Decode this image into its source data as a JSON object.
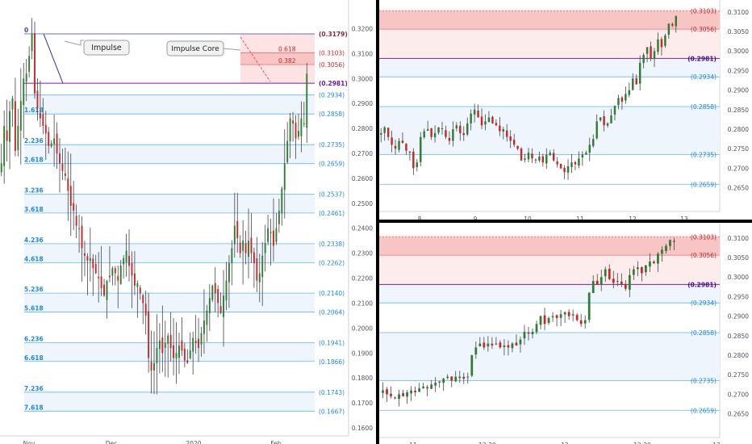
{
  "charts": [
    {
      "id": "daily",
      "type": "candlestick",
      "price_range": [
        0.16,
        0.325
      ],
      "price_ticks": [
        "0.3200",
        "0.3100",
        "0.3000",
        "0.2900",
        "0.2800",
        "0.2700",
        "0.2600",
        "0.2500",
        "0.2400",
        "0.2300",
        "0.2200",
        "0.2100",
        "0.2000",
        "0.1900",
        "0.1800",
        "0.1700",
        "0.1600"
      ],
      "time_labels": [
        "Nov",
        "Dec",
        "2020",
        "Feb"
      ],
      "fib_levels": [
        {
          "ratio": "0",
          "price": "(0.3179)",
          "value": 0.3179,
          "kind": "top"
        },
        {
          "ratio": "",
          "price": "(0.2981)",
          "value": 0.2981,
          "kind": "key"
        },
        {
          "ratio": "",
          "price": "(0.2934)",
          "value": 0.2934,
          "kind": "normal"
        },
        {
          "ratio": "1.618",
          "price": "(0.2858)",
          "value": 0.2858,
          "kind": "normal"
        },
        {
          "ratio": "2.236",
          "price": "(0.2735)",
          "value": 0.2735,
          "kind": "normal"
        },
        {
          "ratio": "2.618",
          "price": "(0.2659)",
          "value": 0.2659,
          "kind": "normal"
        },
        {
          "ratio": "3.236",
          "price": "(0.2537)",
          "value": 0.2537,
          "kind": "normal"
        },
        {
          "ratio": "3.618",
          "price": "(0.2461)",
          "value": 0.2461,
          "kind": "normal"
        },
        {
          "ratio": "4.236",
          "price": "(0.2338)",
          "value": 0.2338,
          "kind": "normal"
        },
        {
          "ratio": "4.618",
          "price": "(0.2262)",
          "value": 0.2262,
          "kind": "normal"
        },
        {
          "ratio": "5.236",
          "price": "(0.2140)",
          "value": 0.214,
          "kind": "normal"
        },
        {
          "ratio": "5.618",
          "price": "(0.2064)",
          "value": 0.2064,
          "kind": "normal"
        },
        {
          "ratio": "6.236",
          "price": "(0.1941)",
          "value": 0.1941,
          "kind": "normal"
        },
        {
          "ratio": "6.618",
          "price": "(0.1866)",
          "value": 0.1866,
          "kind": "normal"
        },
        {
          "ratio": "7.236",
          "price": "(0.1743)",
          "value": 0.1743,
          "kind": "normal"
        },
        {
          "ratio": "7.618",
          "price": "(0.1667)",
          "value": 0.1667,
          "kind": "normal"
        }
      ],
      "zone_levels": [
        {
          "ratio": "0.618",
          "price": "(0.3103)",
          "value": 0.3103
        },
        {
          "ratio": "0.382",
          "price": "(0.3056)",
          "value": 0.3056
        }
      ],
      "callouts": {
        "impulse": "Impulse",
        "impulse_core": "Impulse Core"
      },
      "closes": [
        0.266,
        0.281,
        0.275,
        0.287,
        0.292,
        0.271,
        0.281,
        0.291,
        0.3,
        0.302,
        0.309,
        0.318,
        0.294,
        0.288,
        0.284,
        0.281,
        0.278,
        0.273,
        0.274,
        0.276,
        0.27,
        0.266,
        0.263,
        0.261,
        0.255,
        0.249,
        0.247,
        0.241,
        0.24,
        0.232,
        0.229,
        0.227,
        0.228,
        0.224,
        0.222,
        0.22,
        0.216,
        0.213,
        0.219,
        0.221,
        0.224,
        0.222,
        0.219,
        0.225,
        0.228,
        0.231,
        0.225,
        0.221,
        0.217,
        0.218,
        0.214,
        0.21,
        0.205,
        0.188,
        0.183,
        0.186,
        0.192,
        0.195,
        0.19,
        0.194,
        0.197,
        0.192,
        0.188,
        0.19,
        0.193,
        0.191,
        0.187,
        0.186,
        0.191,
        0.196,
        0.194,
        0.192,
        0.198,
        0.203,
        0.207,
        0.212,
        0.217,
        0.214,
        0.21,
        0.206,
        0.213,
        0.219,
        0.226,
        0.232,
        0.241,
        0.236,
        0.23,
        0.235,
        0.23,
        0.235,
        0.23,
        0.226,
        0.219,
        0.222,
        0.229,
        0.234,
        0.24,
        0.238,
        0.233,
        0.24,
        0.247,
        0.256,
        0.266,
        0.275,
        0.284,
        0.282,
        0.276,
        0.279,
        0.284,
        0.282,
        0.302
      ]
    },
    {
      "id": "hourly",
      "type": "candlestick",
      "price_range": [
        0.261,
        0.311
      ],
      "price_ticks": [
        "0.3100",
        "0.3050",
        "0.3000",
        "0.2950",
        "0.2900",
        "0.2850",
        "0.2800",
        "0.2750",
        "0.2700",
        "0.2650"
      ],
      "time_labels": [
        "8",
        "9",
        "10",
        "11",
        "12",
        "13"
      ],
      "levels": [
        {
          "price": "(0.3103)",
          "value": 0.3103,
          "kind": "zone"
        },
        {
          "price": "(0.3056)",
          "value": 0.3056,
          "kind": "zone"
        },
        {
          "price": "(0.2981)",
          "value": 0.2981,
          "kind": "key"
        },
        {
          "price": "(0.2934)",
          "value": 0.2934,
          "kind": "normal"
        },
        {
          "price": "(0.2858)",
          "value": 0.2858,
          "kind": "normal"
        },
        {
          "price": "(0.2735)",
          "value": 0.2735,
          "kind": "normal"
        },
        {
          "price": "(0.2659)",
          "value": 0.2659,
          "kind": "normal"
        }
      ],
      "closes": [
        0.279,
        0.2805,
        0.278,
        0.276,
        0.275,
        0.277,
        0.2765,
        0.2745,
        0.274,
        0.27,
        0.2715,
        0.278,
        0.2795,
        0.28,
        0.278,
        0.279,
        0.2805,
        0.28,
        0.278,
        0.277,
        0.28,
        0.281,
        0.279,
        0.2785,
        0.2815,
        0.284,
        0.285,
        0.283,
        0.281,
        0.282,
        0.283,
        0.2815,
        0.281,
        0.2795,
        0.28,
        0.278,
        0.277,
        0.276,
        0.275,
        0.272,
        0.2725,
        0.274,
        0.2725,
        0.272,
        0.273,
        0.2715,
        0.2735,
        0.274,
        0.272,
        0.271,
        0.27,
        0.269,
        0.2705,
        0.2715,
        0.271,
        0.2725,
        0.2735,
        0.274,
        0.276,
        0.2775,
        0.282,
        0.283,
        0.281,
        0.2815,
        0.2835,
        0.286,
        0.288,
        0.287,
        0.289,
        0.29,
        0.293,
        0.2915,
        0.297,
        0.299,
        0.301,
        0.298,
        0.3,
        0.303,
        0.301,
        0.304,
        0.307,
        0.3065,
        0.309
      ]
    },
    {
      "id": "minute",
      "type": "candlestick",
      "price_range": [
        0.261,
        0.311
      ],
      "price_ticks": [
        "0.3100",
        "0.3050",
        "0.3000",
        "0.2950",
        "0.2900",
        "0.2850",
        "0.2800",
        "0.2750",
        "0.2700",
        "0.2650"
      ],
      "time_labels": [
        "11",
        "12:30",
        "12",
        "12:30",
        "13"
      ],
      "levels": [
        {
          "price": "(0.3103)",
          "value": 0.3103,
          "kind": "zone"
        },
        {
          "price": "(0.3056)",
          "value": 0.3056,
          "kind": "zone"
        },
        {
          "price": "(0.2981)",
          "value": 0.2981,
          "kind": "key"
        },
        {
          "price": "(0.2934)",
          "value": 0.2934,
          "kind": "normal"
        },
        {
          "price": "(0.2858)",
          "value": 0.2858,
          "kind": "normal"
        },
        {
          "price": "(0.2735)",
          "value": 0.2735,
          "kind": "normal"
        },
        {
          "price": "(0.2659)",
          "value": 0.2659,
          "kind": "normal"
        }
      ],
      "closes": [
        0.271,
        0.27,
        0.2695,
        0.269,
        0.27,
        0.2695,
        0.2705,
        0.271,
        0.2705,
        0.2715,
        0.272,
        0.2715,
        0.2725,
        0.273,
        0.273,
        0.274,
        0.2745,
        0.2735,
        0.2745,
        0.2745,
        0.274,
        0.2745,
        0.28,
        0.282,
        0.283,
        0.282,
        0.283,
        0.2825,
        0.283,
        0.282,
        0.2825,
        0.282,
        0.283,
        0.2825,
        0.284,
        0.286,
        0.2855,
        0.286,
        0.288,
        0.29,
        0.288,
        0.2895,
        0.29,
        0.2895,
        0.2905,
        0.291,
        0.29,
        0.2905,
        0.289,
        0.288,
        0.289,
        0.296,
        0.299,
        0.298,
        0.3,
        0.302,
        0.2995,
        0.2985,
        0.299,
        0.298,
        0.297,
        0.3005,
        0.302,
        0.3025,
        0.301,
        0.303,
        0.304,
        0.3035,
        0.306,
        0.307,
        0.308,
        0.3095,
        0.309
      ]
    }
  ]
}
